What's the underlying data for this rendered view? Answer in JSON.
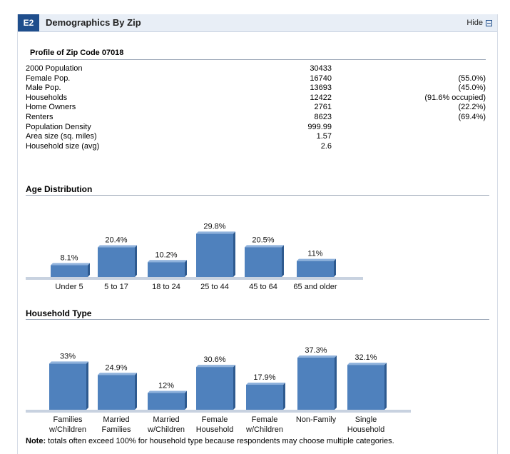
{
  "widget": {
    "badge": "E2",
    "title": "Demographics By Zip",
    "hide_label": "Hide"
  },
  "profile": {
    "title": "Profile of Zip Code 07018",
    "rows": [
      {
        "label": "2000 Population",
        "value": "30433",
        "note": ""
      },
      {
        "label": "Female Pop.",
        "value": "16740",
        "note": "(55.0%)"
      },
      {
        "label": "Male Pop.",
        "value": "13693",
        "note": "(45.0%)"
      },
      {
        "label": "Households",
        "value": "12422",
        "note": "(91.6% occupied)"
      },
      {
        "label": "Home Owners",
        "value": "2761",
        "note": "(22.2%)"
      },
      {
        "label": "Renters",
        "value": "8623",
        "note": "(69.4%)"
      },
      {
        "label": "Population Density",
        "value": "999.99",
        "note": ""
      },
      {
        "label": "Area size (sq. miles)",
        "value": "1.57",
        "note": ""
      },
      {
        "label": "Household size (avg)",
        "value": "2.6",
        "note": ""
      }
    ]
  },
  "chart_data": [
    {
      "type": "bar",
      "title": "Age Distribution",
      "categories": [
        "Under 5",
        "5 to 17",
        "18 to 24",
        "25 to 44",
        "45 to 64",
        "65 and older"
      ],
      "values": [
        8.1,
        20.4,
        10.2,
        29.8,
        20.5,
        11
      ],
      "value_labels": [
        "8.1%",
        "20.4%",
        "10.2%",
        "29.8%",
        "20.5%",
        "11%"
      ],
      "color": "#4f81bd",
      "ylim": [
        0,
        30
      ]
    },
    {
      "type": "bar",
      "title": "Household Type",
      "categories": [
        [
          "Families",
          "w/Children"
        ],
        [
          "Married",
          "Families"
        ],
        [
          "Married",
          "w/Children"
        ],
        [
          "Female",
          "Household"
        ],
        [
          "Female",
          "w/Children"
        ],
        [
          "Non-Family"
        ],
        [
          "Single",
          "Household"
        ]
      ],
      "values": [
        33,
        24.9,
        12,
        30.6,
        17.9,
        37.3,
        32.1
      ],
      "value_labels": [
        "33%",
        "24.9%",
        "12%",
        "30.6%",
        "17.9%",
        "37.3%",
        "32.1%"
      ],
      "color": "#4f81bd",
      "ylim": [
        0,
        37.3
      ]
    }
  ],
  "footnote": {
    "label": "Note:",
    "text": " totals often exceed 100% for household type because respondents may choose multiple categories."
  }
}
